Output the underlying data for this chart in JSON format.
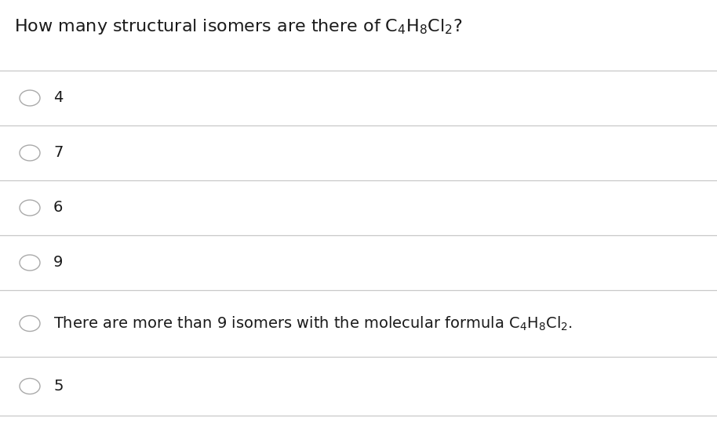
{
  "title_text": "How many structural isomers are there of $\\mathregular{C_4H_8Cl_2}$?",
  "options": [
    "4",
    "7",
    "6",
    "9",
    "There are more than 9 isomers with the molecular formula $\\mathregular{C_4H_8Cl_2}$.",
    "5"
  ],
  "bg_color": "#ffffff",
  "text_color": "#1a1a1a",
  "line_color": "#c8c8c8",
  "circle_edge_color": "#aaaaaa",
  "font_size_title": 16,
  "font_size_options": 14,
  "fig_width": 9.14,
  "fig_height": 5.56,
  "dpi": 100
}
